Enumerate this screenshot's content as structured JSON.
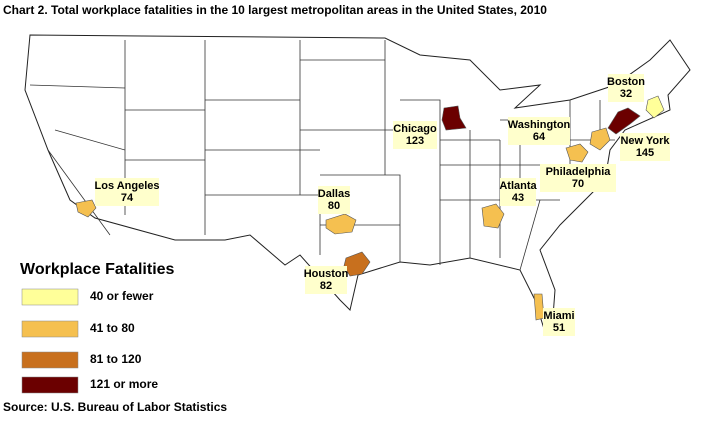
{
  "title": "Chart 2. Total workplace fatalities in the 10 largest metropolitan areas in the United States, 2010",
  "cities": [
    {
      "name": "Los Angeles",
      "value": 74,
      "color": "#f5c050"
    },
    {
      "name": "Dallas",
      "value": 80,
      "color": "#f5c050"
    },
    {
      "name": "Houston",
      "value": 82,
      "color": "#c8701e"
    },
    {
      "name": "Chicago",
      "value": 123,
      "color": "#6b0000"
    },
    {
      "name": "Washington",
      "value": 64,
      "color": "#f5c050"
    },
    {
      "name": "New York",
      "value": 145,
      "color": "#6b0000"
    },
    {
      "name": "Boston",
      "value": 32,
      "color": "#ffff99"
    },
    {
      "name": "Philadelphia",
      "value": 70,
      "color": "#f5c050"
    },
    {
      "name": "Atlanta",
      "value": 43,
      "color": "#f5c050"
    },
    {
      "name": "Miami",
      "value": 51,
      "color": "#f5c050"
    }
  ],
  "legend": {
    "title": "Workplace Fatalities",
    "items": [
      {
        "label": "40 or fewer",
        "color": "#ffff99"
      },
      {
        "label": "41 to 80",
        "color": "#f5c050"
      },
      {
        "label": "81 to 120",
        "color": "#c8701e"
      },
      {
        "label": "121 or more",
        "color": "#6b0000"
      }
    ]
  },
  "source": "Source: U.S. Bureau of Labor Statistics"
}
